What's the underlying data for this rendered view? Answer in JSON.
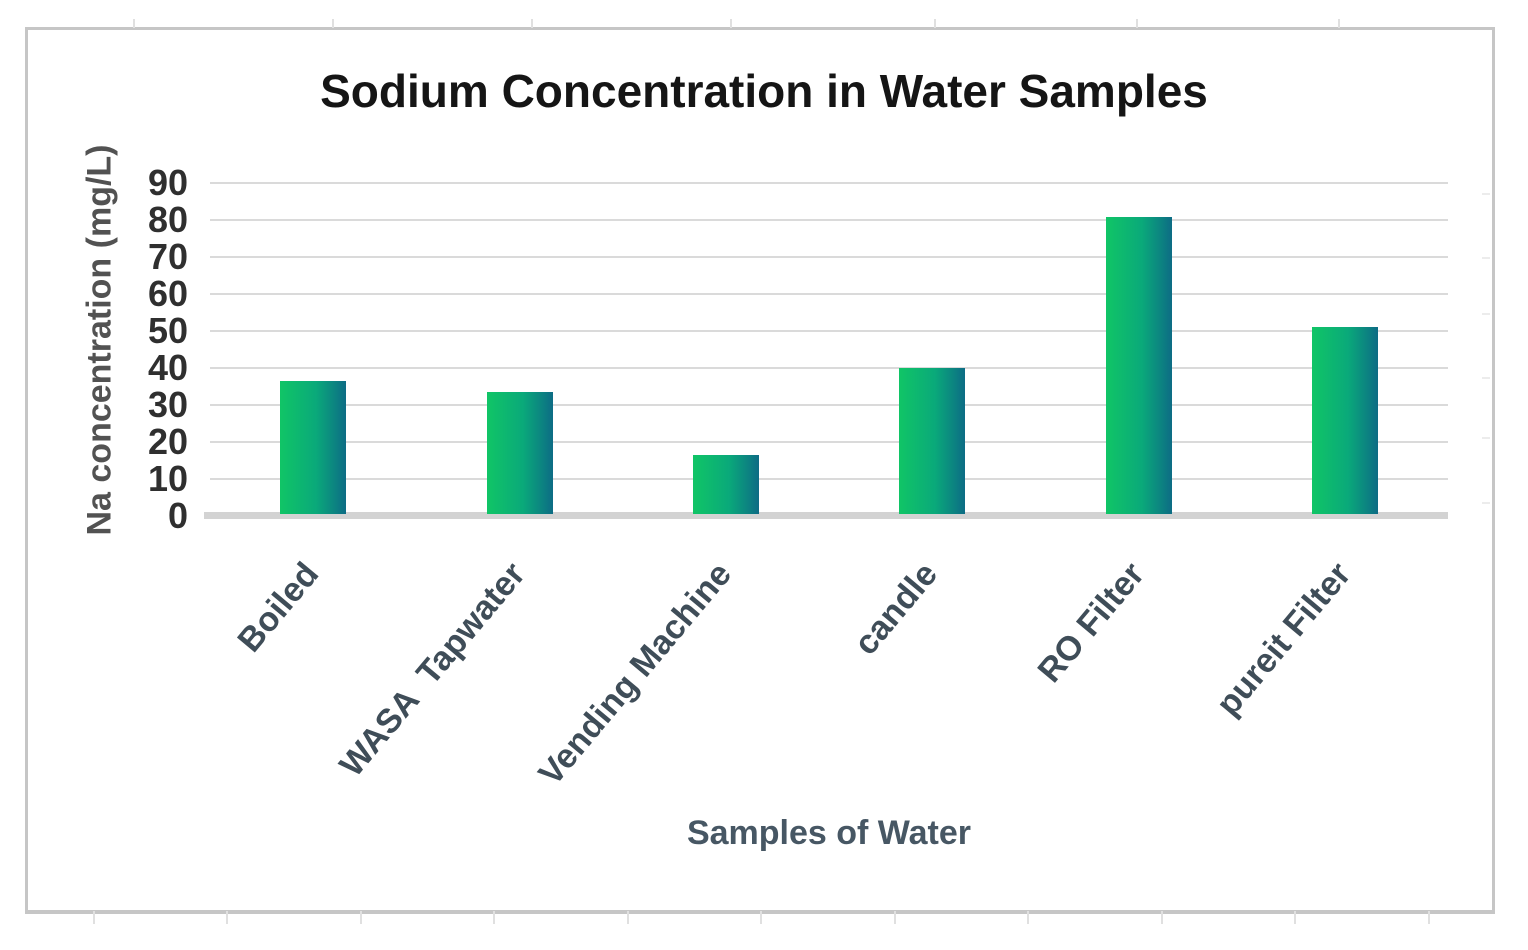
{
  "figure": {
    "title": "Sodium Concentration in Water Samples",
    "y_axis_title": "Na concentration (mg/L)",
    "x_axis_title": "Samples of Water"
  },
  "chart_data": {
    "type": "bar",
    "title": "Sodium Concentration in Water Samples",
    "xlabel": "Samples of Water",
    "ylabel": "Na concentration (mg/L)",
    "categories": [
      "Boiled",
      "WASA  Tapwater",
      "Vending Machine",
      "candle",
      "RO Filter",
      "pureit Filter"
    ],
    "values": [
      36,
      33,
      16,
      39.5,
      80.5,
      50.5
    ],
    "y_ticks": [
      0,
      10,
      20,
      30,
      40,
      50,
      60,
      70,
      80,
      90
    ],
    "ylim": [
      0,
      90
    ],
    "grid": "horizontal",
    "legend": false,
    "bar_gradient": [
      "#10c566",
      "#0aa97a",
      "#0d6c85"
    ],
    "gridline_color": "#dadada",
    "frame_color": "#c6c6c6"
  }
}
